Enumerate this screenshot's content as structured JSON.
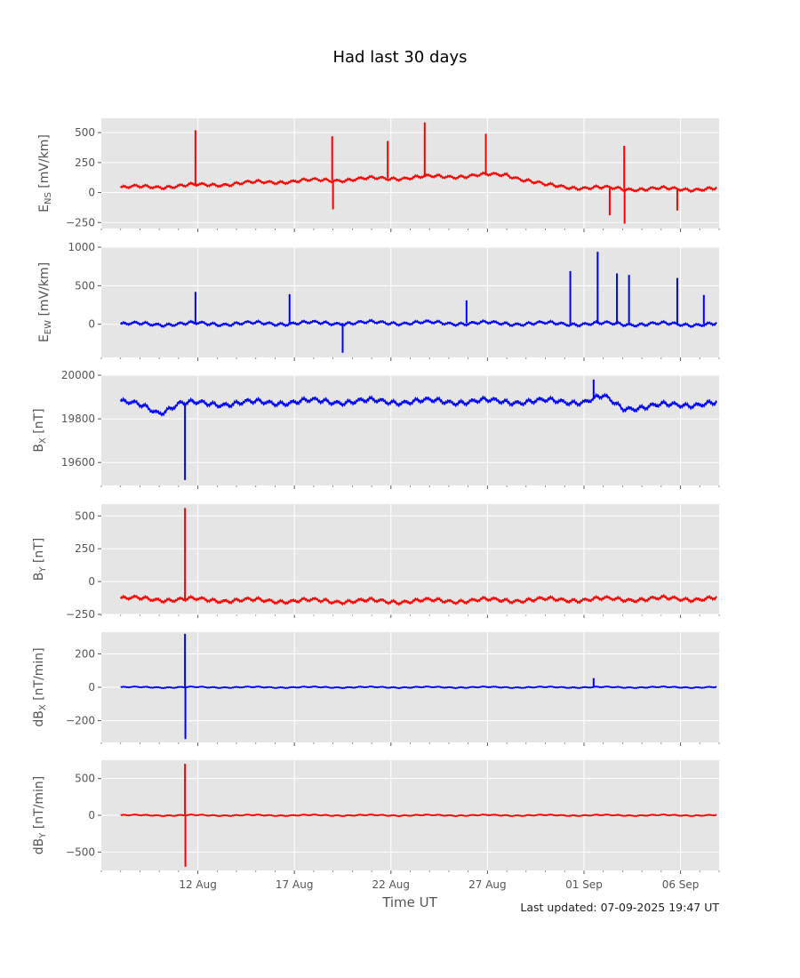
{
  "title": "Had last 30 days",
  "xlabel": "Time UT",
  "footer": "Last updated: 07-09-2025 19:47 UT",
  "colors": {
    "panel_bg": "#e5e5e5",
    "grid": "#ffffff",
    "tick_text": "#555555",
    "red": "#ff0000",
    "blue": "#0000ff"
  },
  "chart_data": [
    {
      "type": "line",
      "ylabel": {
        "main": "E",
        "sub": "NS",
        "unit": "[mV/km]"
      },
      "color": "#ff0000",
      "ylim": [
        -300,
        620
      ],
      "yticks": [
        -250,
        0,
        250,
        500
      ],
      "ytick_labels": [
        "−250",
        "0",
        "250",
        "500"
      ],
      "x": [
        "2025-08-08",
        "2025-08-12",
        "2025-08-16",
        "2025-08-20",
        "2025-08-24",
        "2025-08-28",
        "2025-08-30",
        "2025-09-01",
        "2025-09-04",
        "2025-09-07"
      ],
      "y": [
        40,
        60,
        90,
        110,
        130,
        150,
        60,
        40,
        30,
        30
      ],
      "spikes": [
        {
          "x": "2025-08-11 21:00",
          "y": 520
        },
        {
          "x": "2025-08-18 23:00",
          "y": 470
        },
        {
          "x": "2025-08-19 00:00",
          "y": -140
        },
        {
          "x": "2025-08-21 20:00",
          "y": 430
        },
        {
          "x": "2025-08-23 18:00",
          "y": 585
        },
        {
          "x": "2025-08-26 22:00",
          "y": 490
        },
        {
          "x": "2025-09-02 08:00",
          "y": -190
        },
        {
          "x": "2025-09-03 02:00",
          "y": 390
        },
        {
          "x": "2025-09-03 02:30",
          "y": -260
        },
        {
          "x": "2025-09-05 20:00",
          "y": -150
        }
      ]
    },
    {
      "type": "line",
      "ylabel": {
        "main": "E",
        "sub": "EW",
        "unit": "[mV/km]"
      },
      "color": "#0000ff",
      "ylim": [
        -430,
        1000
      ],
      "yticks": [
        0,
        500,
        1000
      ],
      "ytick_labels": [
        "0",
        "500",
        "1000"
      ],
      "x": [
        "2025-08-08",
        "2025-08-15",
        "2025-08-22",
        "2025-08-29",
        "2025-09-07"
      ],
      "y": [
        0,
        10,
        20,
        10,
        0
      ],
      "spikes": [
        {
          "x": "2025-08-11 21:00",
          "y": 420
        },
        {
          "x": "2025-08-16 18:00",
          "y": 390
        },
        {
          "x": "2025-08-19 12:00",
          "y": -370
        },
        {
          "x": "2025-08-25 22:00",
          "y": 310
        },
        {
          "x": "2025-08-31 07:00",
          "y": 690
        },
        {
          "x": "2025-09-01 17:00",
          "y": 940
        },
        {
          "x": "2025-09-02 17:00",
          "y": 660
        },
        {
          "x": "2025-09-03 08:00",
          "y": 640
        },
        {
          "x": "2025-09-05 20:00",
          "y": 600
        },
        {
          "x": "2025-09-07 05:00",
          "y": 380
        }
      ]
    },
    {
      "type": "line",
      "ylabel": {
        "main": "B",
        "sub": "X",
        "unit": "[nT]"
      },
      "color": "#0000ff",
      "ylim": [
        19495,
        20000
      ],
      "yticks": [
        19600,
        19800,
        20000
      ],
      "ytick_labels": [
        "19600",
        "19800",
        "20000"
      ],
      "x": [
        "2025-08-08",
        "2025-08-09",
        "2025-08-10",
        "2025-08-11",
        "2025-08-13",
        "2025-08-18",
        "2025-08-25",
        "2025-09-01",
        "2025-09-02",
        "2025-09-03",
        "2025-09-07"
      ],
      "y": [
        19880,
        19860,
        19830,
        19870,
        19870,
        19880,
        19880,
        19880,
        19900,
        19850,
        19870
      ],
      "spikes": [
        {
          "x": "2025-08-11 08:00",
          "y": 19520
        },
        {
          "x": "2025-09-01 12:00",
          "y": 19980
        }
      ]
    },
    {
      "type": "line",
      "ylabel": {
        "main": "B",
        "sub": "Y",
        "unit": "[nT]"
      },
      "color": "#ff0000",
      "ylim": [
        -250,
        590
      ],
      "yticks": [
        -250,
        0,
        250,
        500
      ],
      "ytick_labels": [
        "−250",
        "0",
        "250",
        "500"
      ],
      "x": [
        "2025-08-08",
        "2025-08-15",
        "2025-08-22",
        "2025-08-29",
        "2025-09-07"
      ],
      "y": [
        -130,
        -145,
        -150,
        -140,
        -130
      ],
      "spikes": [
        {
          "x": "2025-08-11 08:00",
          "y": 560
        }
      ]
    },
    {
      "type": "line",
      "ylabel": {
        "main": "dB",
        "sub": "X",
        "unit": "[nT/min]"
      },
      "color": "#0000ff",
      "ylim": [
        -330,
        330
      ],
      "yticks": [
        -200,
        0,
        200
      ],
      "ytick_labels": [
        "−200",
        "0",
        "200"
      ],
      "x": [
        "2025-08-08",
        "2025-09-07"
      ],
      "y": [
        0,
        0
      ],
      "spikes": [
        {
          "x": "2025-08-11 08:00",
          "y": 320
        },
        {
          "x": "2025-08-11 08:30",
          "y": -310
        },
        {
          "x": "2025-09-01 12:00",
          "y": 55
        }
      ]
    },
    {
      "type": "line",
      "ylabel": {
        "main": "dB",
        "sub": "Y",
        "unit": "[nT/min]"
      },
      "color": "#ff0000",
      "ylim": [
        -750,
        750
      ],
      "yticks": [
        -500,
        0,
        500
      ],
      "ytick_labels": [
        "−500",
        "0",
        "500"
      ],
      "x": [
        "2025-08-08",
        "2025-09-07"
      ],
      "y": [
        0,
        0
      ],
      "spikes": [
        {
          "x": "2025-08-11 08:00",
          "y": 700
        },
        {
          "x": "2025-08-11 08:30",
          "y": -700
        }
      ]
    }
  ],
  "xaxis": {
    "range": [
      "2025-08-07",
      "2025-09-08"
    ],
    "ticks": [
      "2025-08-12",
      "2025-08-17",
      "2025-08-22",
      "2025-08-27",
      "2025-09-01",
      "2025-09-06"
    ],
    "tick_labels": [
      "12 Aug",
      "17 Aug",
      "22 Aug",
      "27 Aug",
      "01 Sep",
      "06 Sep"
    ]
  }
}
